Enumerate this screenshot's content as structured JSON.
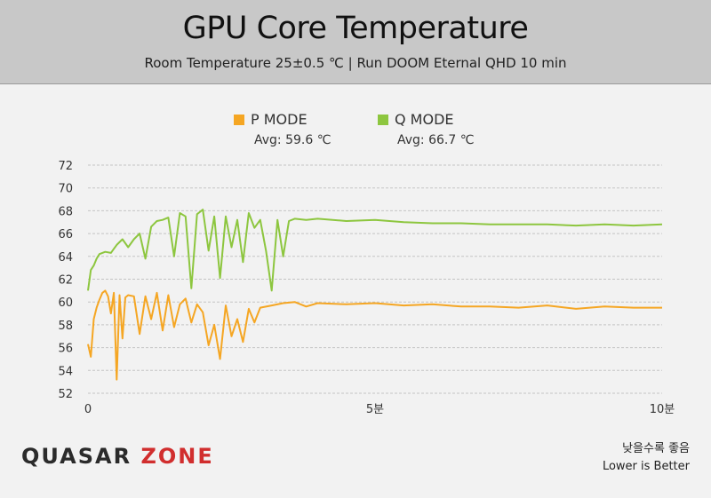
{
  "title": "GPU Core Temperature",
  "subtitle": "Room Temperature 25±0.5 ℃  |  Run DOOM Eternal QHD 10 min",
  "legend": [
    {
      "name": "P MODE",
      "avg": "Avg: 59.6 ℃",
      "color": "#f5a623"
    },
    {
      "name": "Q MODE",
      "avg": "Avg: 66.7 ℃",
      "color": "#8dc63f"
    }
  ],
  "footer": {
    "logo_a": "QUASAR",
    "logo_b": "ZONE",
    "note_ko": "낮을수록 좋음",
    "note_en": "Lower is Better"
  },
  "chart_data": {
    "type": "line",
    "title": "GPU Core Temperature",
    "xlabel": "",
    "ylabel": "",
    "xlim": [
      0,
      10
    ],
    "ylim": [
      52,
      72
    ],
    "x_ticks": [
      {
        "value": 0,
        "label": "0"
      },
      {
        "value": 5,
        "label": "5분"
      },
      {
        "value": 10,
        "label": "10분"
      }
    ],
    "y_ticks": [
      52,
      54,
      56,
      58,
      60,
      62,
      64,
      66,
      68,
      70,
      72
    ],
    "grid": "horizontal dashed",
    "legend_position": "top-center",
    "series": [
      {
        "name": "P MODE",
        "color": "#f5a623",
        "x": [
          0,
          0.05,
          0.1,
          0.15,
          0.2,
          0.25,
          0.3,
          0.35,
          0.4,
          0.45,
          0.5,
          0.55,
          0.6,
          0.65,
          0.7,
          0.8,
          0.9,
          1.0,
          1.1,
          1.2,
          1.3,
          1.4,
          1.5,
          1.6,
          1.7,
          1.8,
          1.9,
          2.0,
          2.1,
          2.2,
          2.3,
          2.4,
          2.5,
          2.6,
          2.7,
          2.8,
          2.9,
          3.0,
          3.2,
          3.4,
          3.6,
          3.8,
          4.0,
          4.5,
          5.0,
          5.5,
          6.0,
          6.5,
          7.0,
          7.5,
          8.0,
          8.5,
          9.0,
          9.5,
          10.0
        ],
        "y": [
          56.3,
          55.2,
          58.5,
          59.5,
          60.2,
          60.8,
          61.0,
          60.5,
          59.0,
          60.8,
          53.2,
          60.6,
          56.8,
          60.4,
          60.6,
          60.5,
          57.2,
          60.5,
          58.5,
          60.8,
          57.5,
          60.6,
          57.8,
          59.8,
          60.3,
          58.2,
          59.8,
          59.1,
          56.2,
          58.0,
          55.0,
          59.7,
          57.0,
          58.5,
          56.5,
          59.4,
          58.2,
          59.5,
          59.7,
          59.9,
          60.0,
          59.6,
          59.9,
          59.8,
          59.9,
          59.7,
          59.8,
          59.6,
          59.6,
          59.5,
          59.7,
          59.4,
          59.6,
          59.5,
          59.5
        ]
      },
      {
        "name": "Q MODE",
        "color": "#8dc63f",
        "x": [
          0,
          0.05,
          0.1,
          0.15,
          0.2,
          0.3,
          0.4,
          0.5,
          0.6,
          0.7,
          0.8,
          0.9,
          1.0,
          1.1,
          1.2,
          1.3,
          1.4,
          1.5,
          1.6,
          1.7,
          1.8,
          1.9,
          2.0,
          2.1,
          2.2,
          2.3,
          2.4,
          2.5,
          2.6,
          2.7,
          2.8,
          2.9,
          3.0,
          3.1,
          3.2,
          3.3,
          3.4,
          3.5,
          3.6,
          3.8,
          4.0,
          4.5,
          5.0,
          5.5,
          6.0,
          6.5,
          7.0,
          7.5,
          8.0,
          8.5,
          9.0,
          9.5,
          10.0
        ],
        "y": [
          61.0,
          62.8,
          63.2,
          63.8,
          64.2,
          64.4,
          64.3,
          65.0,
          65.5,
          64.8,
          65.5,
          66.0,
          63.8,
          66.6,
          67.1,
          67.2,
          67.4,
          64.0,
          67.8,
          67.5,
          61.2,
          67.7,
          68.1,
          64.5,
          67.5,
          62.1,
          67.5,
          64.8,
          67.2,
          63.5,
          67.8,
          66.5,
          67.2,
          64.5,
          61.0,
          67.2,
          64.0,
          67.1,
          67.3,
          67.2,
          67.3,
          67.1,
          67.2,
          67.0,
          66.9,
          66.9,
          66.8,
          66.8,
          66.8,
          66.7,
          66.8,
          66.7,
          66.8
        ]
      }
    ]
  }
}
